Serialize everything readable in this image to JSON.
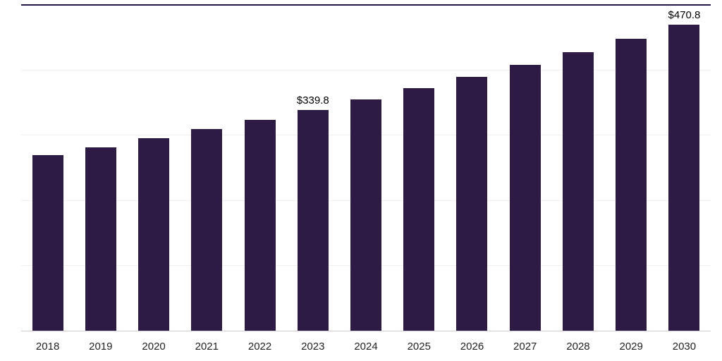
{
  "chart_data": {
    "type": "bar",
    "title": "",
    "xlabel": "",
    "ylabel": "",
    "categories": [
      "2018",
      "2019",
      "2020",
      "2021",
      "2022",
      "2023",
      "2024",
      "2025",
      "2026",
      "2027",
      "2028",
      "2029",
      "2030"
    ],
    "values": [
      270.1,
      282.5,
      295.9,
      310.0,
      324.6,
      339.8,
      356.0,
      372.9,
      390.6,
      409.2,
      428.6,
      449.0,
      470.8
    ],
    "ylim": [
      0,
      500
    ],
    "gridline_values": [
      100,
      200,
      300,
      400
    ],
    "grid": true,
    "legend": "none",
    "annotations": [
      {
        "category": "2023",
        "text": "$339.8"
      },
      {
        "category": "2030",
        "text": "$470.8"
      }
    ],
    "colors": {
      "bar": "#2d1b45",
      "top_border": "#241744",
      "gridline": "#efefef",
      "axis_line": "#cccccc",
      "tick_text": "#222222",
      "label_text": "#000000"
    }
  }
}
